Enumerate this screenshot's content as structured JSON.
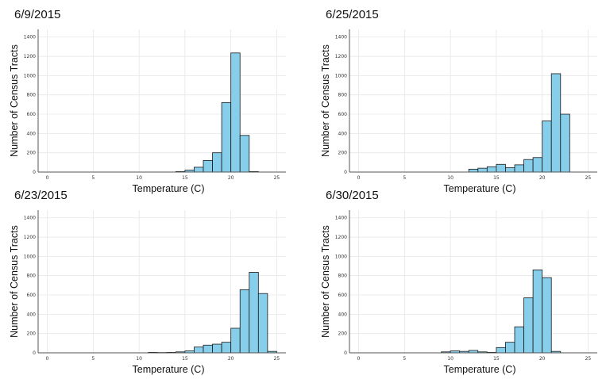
{
  "colors": {
    "bar_fill": "#87CEEB",
    "bar_stroke": "#1a1a1a",
    "grid": "#e6e6e6",
    "axis": "#555555"
  },
  "chart_data": [
    {
      "type": "bar",
      "title": "6/9/2015",
      "xlabel": "Temperature (C)",
      "ylabel": "Number of Census Tracts",
      "xlim": [
        -1,
        26
      ],
      "ylim": [
        0,
        1480
      ],
      "xticks": [
        0,
        5,
        10,
        15,
        20,
        25
      ],
      "yticks": [
        0,
        200,
        400,
        600,
        800,
        1000,
        1200,
        1400
      ],
      "grid": true,
      "bin_width": 1,
      "bins": [
        {
          "x": 14,
          "y": 5
        },
        {
          "x": 15,
          "y": 20
        },
        {
          "x": 16,
          "y": 50
        },
        {
          "x": 17,
          "y": 120
        },
        {
          "x": 18,
          "y": 200
        },
        {
          "x": 19,
          "y": 720
        },
        {
          "x": 20,
          "y": 1235
        },
        {
          "x": 21,
          "y": 380
        },
        {
          "x": 22,
          "y": 5
        }
      ]
    },
    {
      "type": "bar",
      "title": "6/25/2015",
      "xlabel": "Temperature (C)",
      "ylabel": "Number of Census Tracts",
      "xlim": [
        -1,
        26
      ],
      "ylim": [
        0,
        1480
      ],
      "xticks": [
        0,
        5,
        10,
        15,
        20,
        25
      ],
      "yticks": [
        0,
        200,
        400,
        600,
        800,
        1000,
        1200,
        1400
      ],
      "grid": true,
      "bin_width": 1,
      "bins": [
        {
          "x": 12,
          "y": 30
        },
        {
          "x": 13,
          "y": 40
        },
        {
          "x": 14,
          "y": 55
        },
        {
          "x": 15,
          "y": 80
        },
        {
          "x": 16,
          "y": 45
        },
        {
          "x": 17,
          "y": 75
        },
        {
          "x": 18,
          "y": 130
        },
        {
          "x": 19,
          "y": 150
        },
        {
          "x": 20,
          "y": 530
        },
        {
          "x": 21,
          "y": 1020
        },
        {
          "x": 22,
          "y": 600
        }
      ]
    },
    {
      "type": "bar",
      "title": "6/23/2015",
      "xlabel": "Temperature (C)",
      "ylabel": "Number of Census Tracts",
      "xlim": [
        -1,
        26
      ],
      "ylim": [
        0,
        1480
      ],
      "xticks": [
        0,
        5,
        10,
        15,
        20,
        25
      ],
      "yticks": [
        0,
        200,
        400,
        600,
        800,
        1000,
        1200,
        1400
      ],
      "grid": true,
      "bin_width": 1,
      "bins": [
        {
          "x": 11,
          "y": 5
        },
        {
          "x": 12,
          "y": 3
        },
        {
          "x": 13,
          "y": 5
        },
        {
          "x": 14,
          "y": 10
        },
        {
          "x": 15,
          "y": 20
        },
        {
          "x": 16,
          "y": 60
        },
        {
          "x": 17,
          "y": 80
        },
        {
          "x": 18,
          "y": 90
        },
        {
          "x": 19,
          "y": 110
        },
        {
          "x": 20,
          "y": 255
        },
        {
          "x": 21,
          "y": 655
        },
        {
          "x": 22,
          "y": 835
        },
        {
          "x": 23,
          "y": 615
        },
        {
          "x": 24,
          "y": 15
        }
      ]
    },
    {
      "type": "bar",
      "title": "6/30/2015",
      "xlabel": "Temperature (C)",
      "ylabel": "Number of Census Tracts",
      "xlim": [
        -1,
        26
      ],
      "ylim": [
        0,
        1480
      ],
      "xticks": [
        0,
        5,
        10,
        15,
        20,
        25
      ],
      "yticks": [
        0,
        200,
        400,
        600,
        800,
        1000,
        1200,
        1400
      ],
      "grid": true,
      "bin_width": 1,
      "bins": [
        {
          "x": 9,
          "y": 10
        },
        {
          "x": 10,
          "y": 20
        },
        {
          "x": 11,
          "y": 15
        },
        {
          "x": 12,
          "y": 25
        },
        {
          "x": 13,
          "y": 10
        },
        {
          "x": 14,
          "y": 5
        },
        {
          "x": 15,
          "y": 55
        },
        {
          "x": 16,
          "y": 110
        },
        {
          "x": 17,
          "y": 270
        },
        {
          "x": 18,
          "y": 570
        },
        {
          "x": 19,
          "y": 860
        },
        {
          "x": 20,
          "y": 780
        },
        {
          "x": 21,
          "y": 15
        }
      ]
    }
  ]
}
